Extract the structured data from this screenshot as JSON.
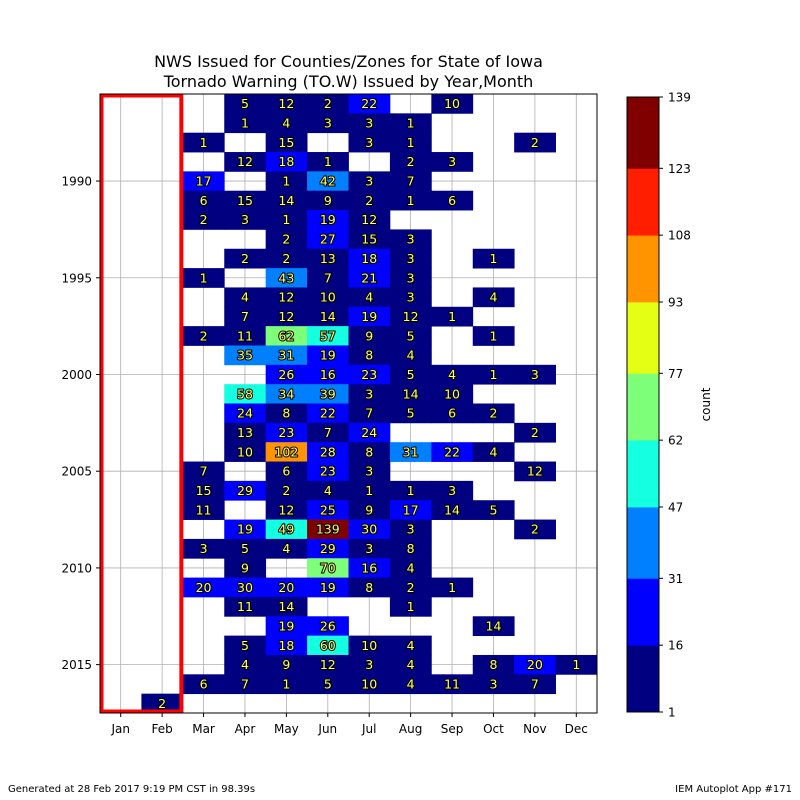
{
  "chart_data": {
    "type": "heatmap",
    "title_line1": "NWS Issued for Counties/Zones for State of Iowa",
    "title_line2": "Tornado Warning (TO.W) Issued by Year,Month",
    "months": [
      "Jan",
      "Feb",
      "Mar",
      "Apr",
      "May",
      "Jun",
      "Jul",
      "Aug",
      "Sep",
      "Oct",
      "Nov",
      "Dec"
    ],
    "year_ticks": [
      1990,
      1995,
      2000,
      2005,
      2010,
      2015
    ],
    "year_range": [
      1986,
      2017
    ],
    "colorbar": {
      "label": "count",
      "boundaries": [
        1,
        16,
        31,
        47,
        62,
        77,
        93,
        108,
        123,
        139
      ],
      "colors": [
        "#000080",
        "#0000ff",
        "#0080ff",
        "#15ffe1",
        "#7dff7a",
        "#e4ff13",
        "#ff9400",
        "#ff1e00",
        "#800000"
      ]
    },
    "highlight_months": [
      "Jan",
      "Feb"
    ],
    "highlight_color": "#ff0000",
    "cells": [
      [
        1986,
        4,
        5
      ],
      [
        1986,
        5,
        12
      ],
      [
        1986,
        6,
        2
      ],
      [
        1986,
        7,
        22
      ],
      [
        1986,
        9,
        10
      ],
      [
        1987,
        4,
        1
      ],
      [
        1987,
        5,
        4
      ],
      [
        1987,
        6,
        3
      ],
      [
        1987,
        7,
        3
      ],
      [
        1987,
        8,
        1
      ],
      [
        1988,
        3,
        1
      ],
      [
        1988,
        5,
        15
      ],
      [
        1988,
        7,
        3
      ],
      [
        1988,
        8,
        1
      ],
      [
        1988,
        11,
        2
      ],
      [
        1989,
        4,
        12
      ],
      [
        1989,
        5,
        18
      ],
      [
        1989,
        6,
        1
      ],
      [
        1989,
        8,
        2
      ],
      [
        1989,
        9,
        3
      ],
      [
        1990,
        3,
        17
      ],
      [
        1990,
        5,
        1
      ],
      [
        1990,
        6,
        42
      ],
      [
        1990,
        7,
        3
      ],
      [
        1990,
        8,
        7
      ],
      [
        1991,
        3,
        6
      ],
      [
        1991,
        4,
        15
      ],
      [
        1991,
        5,
        14
      ],
      [
        1991,
        6,
        9
      ],
      [
        1991,
        7,
        2
      ],
      [
        1991,
        8,
        1
      ],
      [
        1991,
        9,
        6
      ],
      [
        1992,
        3,
        2
      ],
      [
        1992,
        4,
        3
      ],
      [
        1992,
        5,
        1
      ],
      [
        1992,
        6,
        19
      ],
      [
        1992,
        7,
        12
      ],
      [
        1993,
        5,
        2
      ],
      [
        1993,
        6,
        27
      ],
      [
        1993,
        7,
        15
      ],
      [
        1993,
        8,
        3
      ],
      [
        1994,
        4,
        2
      ],
      [
        1994,
        5,
        2
      ],
      [
        1994,
        6,
        13
      ],
      [
        1994,
        7,
        18
      ],
      [
        1994,
        8,
        3
      ],
      [
        1994,
        10,
        1
      ],
      [
        1995,
        3,
        1
      ],
      [
        1995,
        5,
        43
      ],
      [
        1995,
        6,
        7
      ],
      [
        1995,
        7,
        21
      ],
      [
        1995,
        8,
        3
      ],
      [
        1996,
        4,
        4
      ],
      [
        1996,
        5,
        12
      ],
      [
        1996,
        6,
        10
      ],
      [
        1996,
        7,
        4
      ],
      [
        1996,
        8,
        3
      ],
      [
        1996,
        10,
        4
      ],
      [
        1997,
        4,
        7
      ],
      [
        1997,
        5,
        12
      ],
      [
        1997,
        6,
        14
      ],
      [
        1997,
        7,
        19
      ],
      [
        1997,
        8,
        12
      ],
      [
        1997,
        9,
        1
      ],
      [
        1998,
        3,
        2
      ],
      [
        1998,
        4,
        11
      ],
      [
        1998,
        5,
        62
      ],
      [
        1998,
        6,
        57
      ],
      [
        1998,
        7,
        9
      ],
      [
        1998,
        8,
        5
      ],
      [
        1998,
        10,
        1
      ],
      [
        1999,
        4,
        35
      ],
      [
        1999,
        5,
        31
      ],
      [
        1999,
        6,
        19
      ],
      [
        1999,
        7,
        8
      ],
      [
        1999,
        8,
        4
      ],
      [
        2000,
        5,
        26
      ],
      [
        2000,
        6,
        16
      ],
      [
        2000,
        7,
        23
      ],
      [
        2000,
        8,
        5
      ],
      [
        2000,
        9,
        4
      ],
      [
        2000,
        10,
        1
      ],
      [
        2000,
        11,
        3
      ],
      [
        2001,
        4,
        58
      ],
      [
        2001,
        5,
        34
      ],
      [
        2001,
        6,
        39
      ],
      [
        2001,
        7,
        3
      ],
      [
        2001,
        8,
        14
      ],
      [
        2001,
        9,
        10
      ],
      [
        2002,
        4,
        24
      ],
      [
        2002,
        5,
        8
      ],
      [
        2002,
        6,
        22
      ],
      [
        2002,
        7,
        7
      ],
      [
        2002,
        8,
        5
      ],
      [
        2002,
        9,
        6
      ],
      [
        2002,
        10,
        2
      ],
      [
        2003,
        4,
        13
      ],
      [
        2003,
        5,
        23
      ],
      [
        2003,
        6,
        7
      ],
      [
        2003,
        7,
        24
      ],
      [
        2003,
        11,
        2
      ],
      [
        2004,
        4,
        10
      ],
      [
        2004,
        5,
        102
      ],
      [
        2004,
        6,
        28
      ],
      [
        2004,
        7,
        8
      ],
      [
        2004,
        8,
        31
      ],
      [
        2004,
        9,
        22
      ],
      [
        2004,
        10,
        4
      ],
      [
        2005,
        3,
        7
      ],
      [
        2005,
        5,
        6
      ],
      [
        2005,
        6,
        23
      ],
      [
        2005,
        7,
        3
      ],
      [
        2005,
        11,
        12
      ],
      [
        2006,
        3,
        15
      ],
      [
        2006,
        4,
        29
      ],
      [
        2006,
        5,
        2
      ],
      [
        2006,
        6,
        4
      ],
      [
        2006,
        7,
        1
      ],
      [
        2006,
        8,
        1
      ],
      [
        2006,
        9,
        3
      ],
      [
        2007,
        3,
        11
      ],
      [
        2007,
        5,
        12
      ],
      [
        2007,
        6,
        25
      ],
      [
        2007,
        7,
        9
      ],
      [
        2007,
        8,
        17
      ],
      [
        2007,
        9,
        14
      ],
      [
        2007,
        10,
        5
      ],
      [
        2008,
        4,
        19
      ],
      [
        2008,
        5,
        49
      ],
      [
        2008,
        6,
        139
      ],
      [
        2008,
        7,
        30
      ],
      [
        2008,
        8,
        3
      ],
      [
        2008,
        11,
        2
      ],
      [
        2009,
        3,
        3
      ],
      [
        2009,
        4,
        5
      ],
      [
        2009,
        5,
        4
      ],
      [
        2009,
        6,
        29
      ],
      [
        2009,
        7,
        3
      ],
      [
        2009,
        8,
        8
      ],
      [
        2010,
        4,
        9
      ],
      [
        2010,
        6,
        70
      ],
      [
        2010,
        7,
        16
      ],
      [
        2010,
        8,
        4
      ],
      [
        2011,
        3,
        20
      ],
      [
        2011,
        4,
        30
      ],
      [
        2011,
        5,
        20
      ],
      [
        2011,
        6,
        19
      ],
      [
        2011,
        7,
        8
      ],
      [
        2011,
        8,
        2
      ],
      [
        2011,
        9,
        1
      ],
      [
        2012,
        4,
        11
      ],
      [
        2012,
        5,
        14
      ],
      [
        2012,
        8,
        1
      ],
      [
        2013,
        5,
        19
      ],
      [
        2013,
        6,
        26
      ],
      [
        2013,
        10,
        14
      ],
      [
        2014,
        4,
        5
      ],
      [
        2014,
        5,
        18
      ],
      [
        2014,
        6,
        60
      ],
      [
        2014,
        7,
        10
      ],
      [
        2014,
        8,
        4
      ],
      [
        2015,
        4,
        4
      ],
      [
        2015,
        5,
        9
      ],
      [
        2015,
        6,
        12
      ],
      [
        2015,
        7,
        3
      ],
      [
        2015,
        8,
        4
      ],
      [
        2015,
        10,
        8
      ],
      [
        2015,
        11,
        20
      ],
      [
        2015,
        12,
        1
      ],
      [
        2016,
        3,
        6
      ],
      [
        2016,
        4,
        7
      ],
      [
        2016,
        5,
        1
      ],
      [
        2016,
        6,
        5
      ],
      [
        2016,
        7,
        10
      ],
      [
        2016,
        8,
        4
      ],
      [
        2016,
        9,
        11
      ],
      [
        2016,
        10,
        3
      ],
      [
        2016,
        11,
        7
      ],
      [
        2017,
        2,
        2
      ]
    ]
  },
  "footer": {
    "generated": "Generated at 28 Feb 2017 9:19 PM CST in 98.39s",
    "app": "IEM Autoplot App #171"
  }
}
